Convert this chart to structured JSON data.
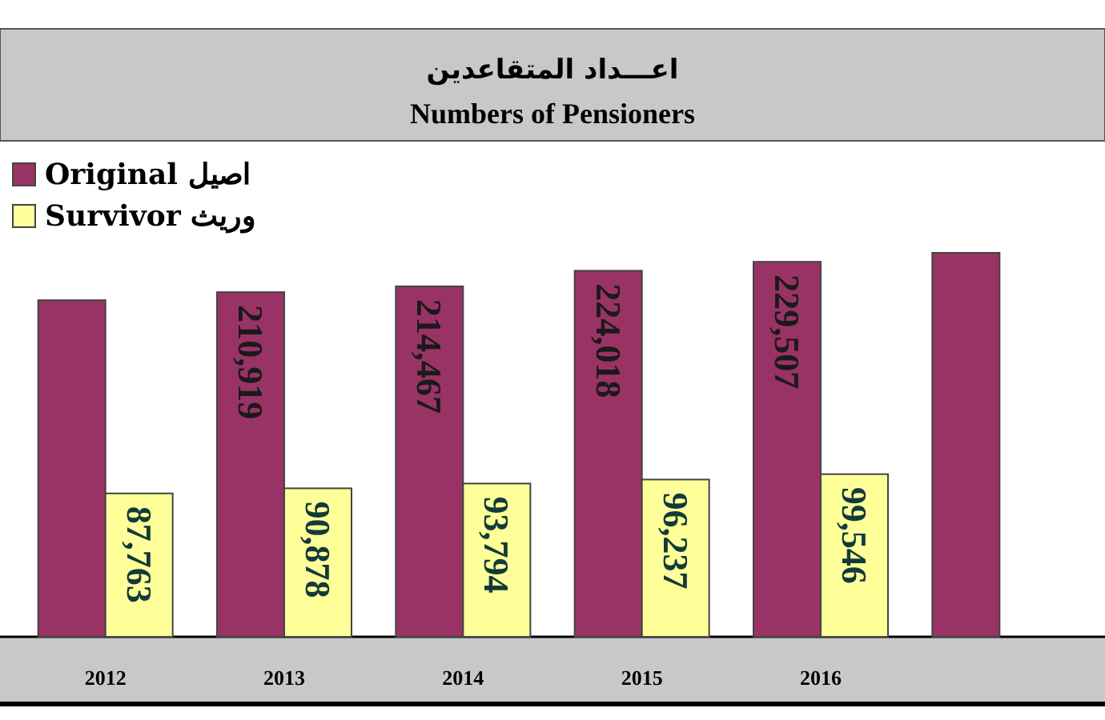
{
  "chart_data": {
    "type": "bar",
    "title": "اعـــداد المتقاعدين",
    "subtitle": "Numbers of Pensioners",
    "categories": [
      "2012",
      "2013",
      "2014",
      "2015",
      "2016",
      null
    ],
    "series": [
      {
        "name": "Original اصيل",
        "color": "#993366",
        "values": [
          206000,
          210919,
          214467,
          224018,
          229507,
          235000
        ],
        "value_labels": [
          null,
          "210,919",
          "214,467",
          "224,018",
          "229,507",
          null
        ]
      },
      {
        "name": "Survivor وريث",
        "color": "#ffff99",
        "values": [
          87763,
          90878,
          93794,
          96237,
          99546,
          null
        ],
        "value_labels": [
          "87,763",
          "90,878",
          "93,794",
          "96,237",
          "99,546",
          null
        ]
      }
    ],
    "legend": "top left"
  }
}
